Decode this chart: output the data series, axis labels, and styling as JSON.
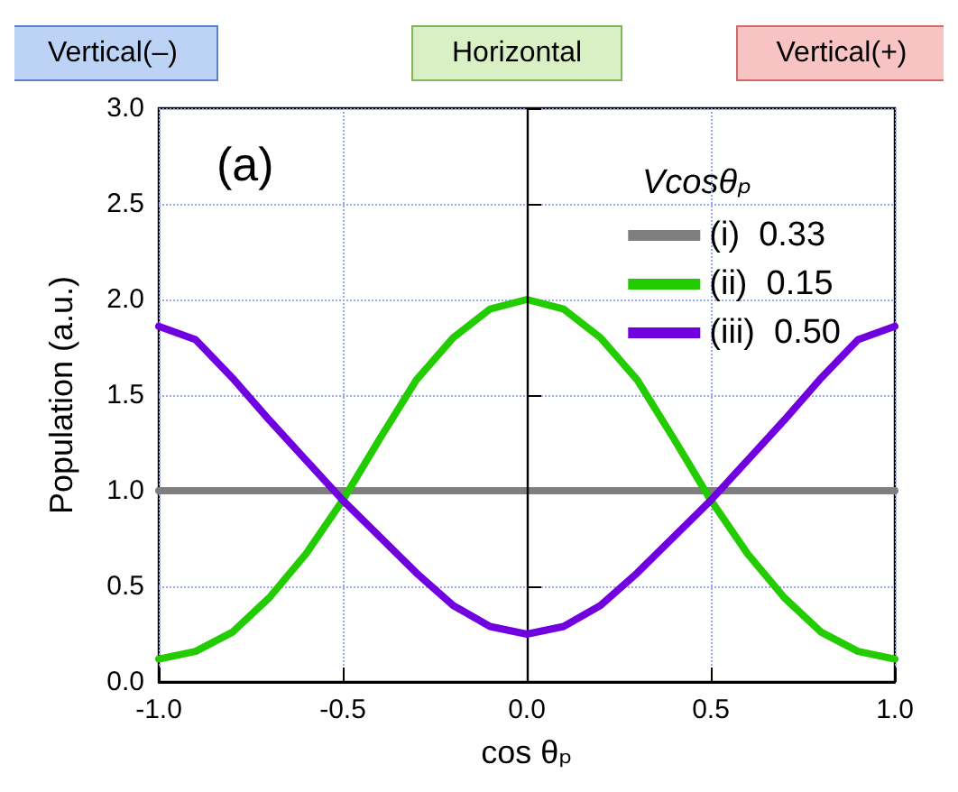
{
  "chart_data": {
    "type": "line",
    "xlabel": "cos θₚ",
    "ylabel": "Population (a.u.)",
    "legend_title": "Vcosθₚ",
    "annotations": [
      "Vertical(–)",
      "Horizontal",
      "Vertical(+)",
      "(a)"
    ],
    "x": [
      -1.0,
      -0.9,
      -0.8,
      -0.7,
      -0.6,
      -0.5,
      -0.4,
      -0.3,
      -0.2,
      -0.1,
      0.0,
      0.1,
      0.2,
      0.3,
      0.4,
      0.5,
      0.6,
      0.7,
      0.8,
      0.9,
      1.0
    ],
    "series": [
      {
        "name": "(i)  0.33",
        "color": "#7f7f7f",
        "values": [
          1.0,
          1.0,
          1.0,
          1.0,
          1.0,
          1.0,
          1.0,
          1.0,
          1.0,
          1.0,
          1.0,
          1.0,
          1.0,
          1.0,
          1.0,
          1.0,
          1.0,
          1.0,
          1.0,
          1.0,
          1.0
        ]
      },
      {
        "name": "(ii)  0.15",
        "color": "#22cc00",
        "values": [
          0.12,
          0.16,
          0.26,
          0.44,
          0.67,
          0.95,
          1.27,
          1.58,
          1.8,
          1.95,
          2.0,
          1.95,
          1.8,
          1.58,
          1.27,
          0.95,
          0.67,
          0.44,
          0.26,
          0.16,
          0.12
        ]
      },
      {
        "name": "(iii)  0.50",
        "color": "#7000e0",
        "values": [
          1.86,
          1.79,
          1.59,
          1.37,
          1.16,
          0.95,
          0.76,
          0.57,
          0.4,
          0.29,
          0.25,
          0.29,
          0.4,
          0.57,
          0.76,
          0.95,
          1.16,
          1.37,
          1.59,
          1.79,
          1.86
        ]
      }
    ],
    "xlim": [
      -1.0,
      1.0
    ],
    "xticks": [
      {
        "value": -1,
        "label": "-1.0"
      },
      {
        "value": -0.5,
        "label": "-0.5"
      },
      {
        "value": 0,
        "label": "0.0"
      },
      {
        "value": 0.5,
        "label": "0.5"
      },
      {
        "value": 1,
        "label": "1.0"
      }
    ],
    "ylim": [
      0,
      3.0
    ],
    "yticks": [
      {
        "value": 0,
        "label": "0.0"
      },
      {
        "value": 0.5,
        "label": "0.5"
      },
      {
        "value": 1,
        "label": "1.0"
      },
      {
        "value": 1.5,
        "label": "1.5"
      },
      {
        "value": 2,
        "label": "2.0"
      },
      {
        "value": 2.5,
        "label": "2.5"
      },
      {
        "value": 3,
        "label": "3.0"
      }
    ],
    "ref_lines": [
      {
        "axis": "x",
        "value": 0,
        "color": "#000000",
        "line_style": "solid"
      }
    ],
    "grid": true,
    "legend": "top right",
    "marker": "none",
    "line_style": "solid"
  }
}
